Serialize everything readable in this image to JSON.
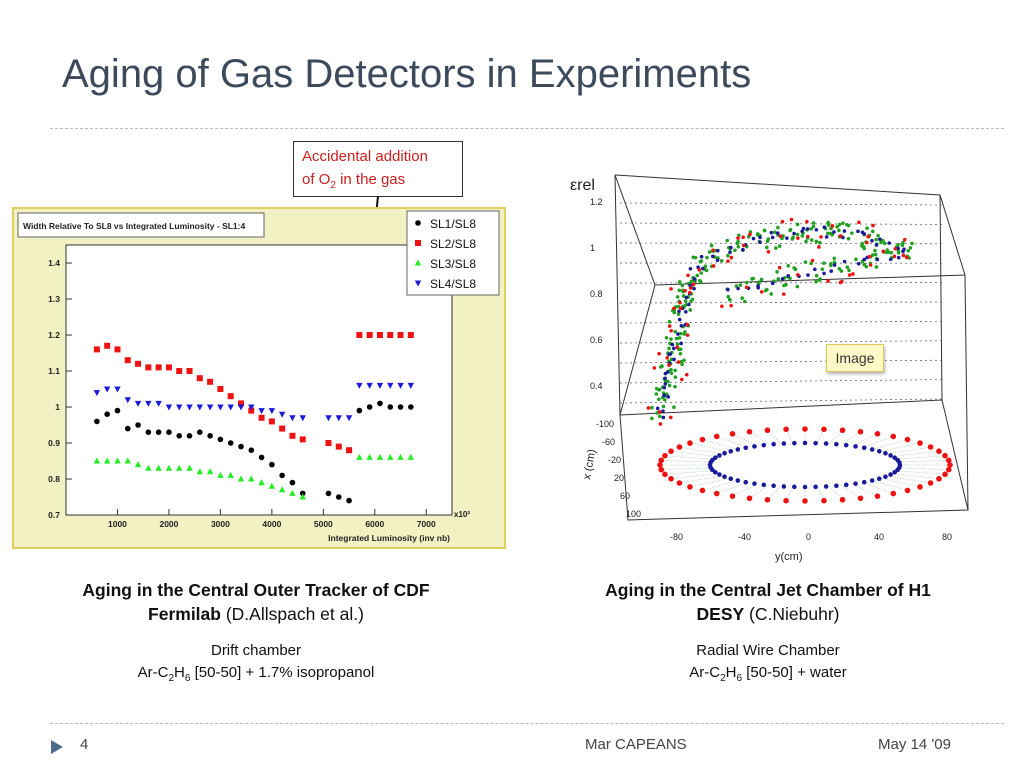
{
  "slide": {
    "title": "Aging of Gas Detectors in Experiments",
    "page_number": "4",
    "author": "Mar CAPEANS",
    "date": "May 14 '09"
  },
  "callout": {
    "line1": "Accidental addition",
    "line2_pre": "of O",
    "line2_sub": "2",
    "line2_post": " in the gas"
  },
  "left": {
    "caption_bold1": "Aging in the Central Outer Tracker of CDF",
    "caption_bold2": "Fermilab",
    "caption_rest": " (D.Allspach et al.)",
    "sub1": "Drift chamber",
    "sub2_a": "Ar-C",
    "sub2_s1": "2",
    "sub2_b": "H",
    "sub2_s2": "6",
    "sub2_c": " [50-50] + 1.7% isopropanol"
  },
  "right": {
    "caption_bold1": "Aging in the Central Jet Chamber of H1",
    "caption_bold2": "DESY",
    "caption_rest": " (C.Niebuhr)",
    "sub1": "Radial Wire Chamber",
    "sub2_a": "Ar-C",
    "sub2_s1": "2",
    "sub2_b": "H",
    "sub2_s2": "6",
    "sub2_c": " [50-50] + water",
    "tooltip": "Image"
  },
  "colors": {
    "title": "#3d4a5c",
    "sl1": "#000000",
    "sl2": "#ee1111",
    "sl3": "#22ee22",
    "sl4": "#1a1ad8",
    "h1_red": "#ee1111",
    "h1_green": "#22a022",
    "h1_blue": "#1a1a9a"
  },
  "chart_data": [
    {
      "type": "scatter",
      "title": "Width Relative To SL8 vs Integrated Luminosity - SL1:4",
      "xlabel": "Integrated Luminosity (inv nb)",
      "x_multiplier": "x10²",
      "ylabel": "",
      "xlim": [
        0,
        7500
      ],
      "ylim": [
        0.7,
        1.45
      ],
      "x_ticks": [
        "1000",
        "2000",
        "3000",
        "4000",
        "5000",
        "6000",
        "7000"
      ],
      "x_tick_values": [
        1000,
        2000,
        3000,
        4000,
        5000,
        6000,
        7000
      ],
      "y_ticks": [
        "0.7",
        "0.8",
        "0.9",
        "1",
        "1.1",
        "1.2",
        "1.3",
        "1.4"
      ],
      "y_tick_values": [
        0.7,
        0.8,
        0.9,
        1,
        1.1,
        1.2,
        1.3,
        1.4
      ],
      "legend_position": "top-right",
      "series": [
        {
          "name": "SL1/SL8",
          "marker": "circle",
          "color": "#000000",
          "points": [
            [
              600,
              0.96
            ],
            [
              800,
              0.98
            ],
            [
              1000,
              0.99
            ],
            [
              1200,
              0.94
            ],
            [
              1400,
              0.95
            ],
            [
              1600,
              0.93
            ],
            [
              1800,
              0.93
            ],
            [
              2000,
              0.93
            ],
            [
              2200,
              0.92
            ],
            [
              2400,
              0.92
            ],
            [
              2600,
              0.93
            ],
            [
              2800,
              0.92
            ],
            [
              3000,
              0.91
            ],
            [
              3200,
              0.9
            ],
            [
              3400,
              0.89
            ],
            [
              3600,
              0.88
            ],
            [
              3800,
              0.86
            ],
            [
              4000,
              0.84
            ],
            [
              4200,
              0.81
            ],
            [
              4400,
              0.79
            ],
            [
              4600,
              0.76
            ],
            [
              5100,
              0.76
            ],
            [
              5300,
              0.75
            ],
            [
              5500,
              0.74
            ],
            [
              5700,
              0.99
            ],
            [
              5900,
              1.0
            ],
            [
              6100,
              1.01
            ],
            [
              6300,
              1.0
            ],
            [
              6500,
              1.0
            ],
            [
              6700,
              1.0
            ]
          ]
        },
        {
          "name": "SL2/SL8",
          "marker": "square",
          "color": "#ee1111",
          "points": [
            [
              600,
              1.16
            ],
            [
              800,
              1.17
            ],
            [
              1000,
              1.16
            ],
            [
              1200,
              1.13
            ],
            [
              1400,
              1.12
            ],
            [
              1600,
              1.11
            ],
            [
              1800,
              1.11
            ],
            [
              2000,
              1.11
            ],
            [
              2200,
              1.1
            ],
            [
              2400,
              1.1
            ],
            [
              2600,
              1.08
            ],
            [
              2800,
              1.07
            ],
            [
              3000,
              1.05
            ],
            [
              3200,
              1.03
            ],
            [
              3400,
              1.01
            ],
            [
              3600,
              0.99
            ],
            [
              3800,
              0.97
            ],
            [
              4000,
              0.96
            ],
            [
              4200,
              0.94
            ],
            [
              4400,
              0.92
            ],
            [
              4600,
              0.91
            ],
            [
              5100,
              0.9
            ],
            [
              5300,
              0.89
            ],
            [
              5500,
              0.88
            ],
            [
              5700,
              1.2
            ],
            [
              5900,
              1.2
            ],
            [
              6100,
              1.2
            ],
            [
              6300,
              1.2
            ],
            [
              6500,
              1.2
            ],
            [
              6700,
              1.2
            ]
          ]
        },
        {
          "name": "SL3/SL8",
          "marker": "triangle-up",
          "color": "#22ee22",
          "points": [
            [
              600,
              0.85
            ],
            [
              800,
              0.85
            ],
            [
              1000,
              0.85
            ],
            [
              1200,
              0.85
            ],
            [
              1400,
              0.84
            ],
            [
              1600,
              0.83
            ],
            [
              1800,
              0.83
            ],
            [
              2000,
              0.83
            ],
            [
              2200,
              0.83
            ],
            [
              2400,
              0.83
            ],
            [
              2600,
              0.82
            ],
            [
              2800,
              0.82
            ],
            [
              3000,
              0.81
            ],
            [
              3200,
              0.81
            ],
            [
              3400,
              0.8
            ],
            [
              3600,
              0.8
            ],
            [
              3800,
              0.79
            ],
            [
              4000,
              0.78
            ],
            [
              4200,
              0.77
            ],
            [
              4400,
              0.76
            ],
            [
              4600,
              0.75
            ],
            [
              5700,
              0.86
            ],
            [
              5900,
              0.86
            ],
            [
              6100,
              0.86
            ],
            [
              6300,
              0.86
            ],
            [
              6500,
              0.86
            ],
            [
              6700,
              0.86
            ]
          ]
        },
        {
          "name": "SL4/SL8",
          "marker": "triangle-down",
          "color": "#1a1ad8",
          "points": [
            [
              600,
              1.04
            ],
            [
              800,
              1.05
            ],
            [
              1000,
              1.05
            ],
            [
              1200,
              1.02
            ],
            [
              1400,
              1.01
            ],
            [
              1600,
              1.01
            ],
            [
              1800,
              1.01
            ],
            [
              2000,
              1.0
            ],
            [
              2200,
              1.0
            ],
            [
              2400,
              1.0
            ],
            [
              2600,
              1.0
            ],
            [
              2800,
              1.0
            ],
            [
              3000,
              1.0
            ],
            [
              3200,
              1.0
            ],
            [
              3400,
              1.0
            ],
            [
              3600,
              1.0
            ],
            [
              3800,
              0.99
            ],
            [
              4000,
              0.99
            ],
            [
              4200,
              0.98
            ],
            [
              4400,
              0.97
            ],
            [
              4600,
              0.97
            ],
            [
              5100,
              0.97
            ],
            [
              5300,
              0.97
            ],
            [
              5500,
              0.97
            ],
            [
              5700,
              1.06
            ],
            [
              5900,
              1.06
            ],
            [
              6100,
              1.06
            ],
            [
              6300,
              1.06
            ],
            [
              6500,
              1.06
            ],
            [
              6700,
              1.06
            ]
          ]
        }
      ]
    },
    {
      "type": "scatter",
      "title": "",
      "zlabel": "εrel",
      "ylabel": "x (cm)",
      "xlabel": "y(cm)",
      "z_ticks": [
        "1.2",
        "1",
        "0.8",
        "0.6",
        "0.4"
      ],
      "x_ticks": [
        "-100",
        "-60",
        "-20",
        "20",
        "60",
        "100"
      ],
      "y_ticks": [
        "-80",
        "-40",
        "0",
        "40",
        "80"
      ],
      "description_series": [
        {
          "name": "",
          "color": "#ee1111",
          "ring": "outer"
        },
        {
          "name": "",
          "color": "#22a022",
          "ring": "middle"
        },
        {
          "name": "",
          "color": "#1a1a9a",
          "ring": "inner"
        }
      ]
    }
  ]
}
